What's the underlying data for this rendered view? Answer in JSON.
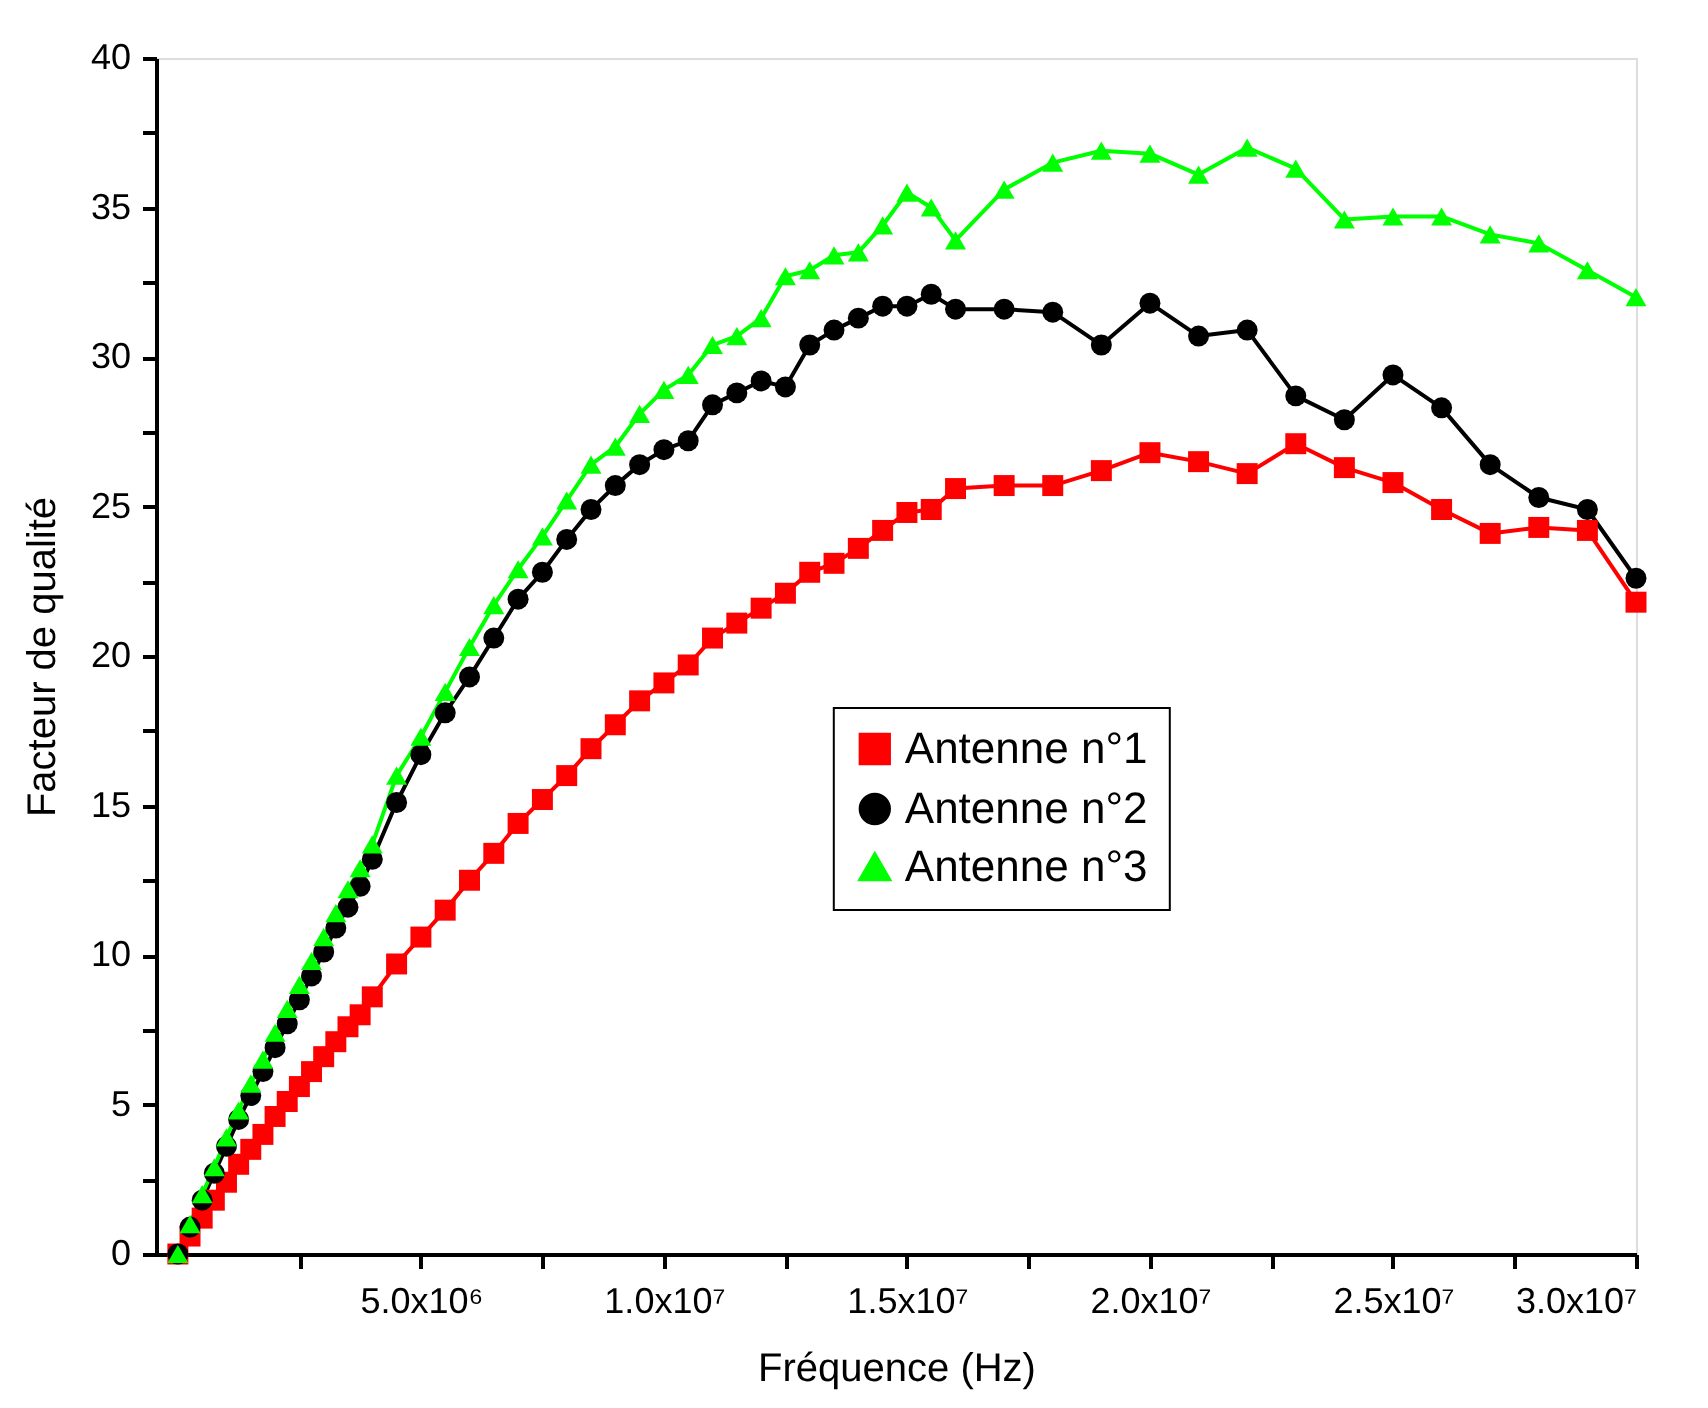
{
  "chart_data": {
    "type": "line",
    "xlabel": "Fréquence (Hz)",
    "ylabel": "Facteur de qualité",
    "xlim": [
      -450000,
      30000000
    ],
    "ylim": [
      0,
      40
    ],
    "xticks": [
      {
        "value": 2500000,
        "label": null
      },
      {
        "value": 5000000,
        "label": "5.0x10⁶"
      },
      {
        "value": 7500000,
        "label": null
      },
      {
        "value": 10000000,
        "label": "1.0x10⁷"
      },
      {
        "value": 12500000,
        "label": null
      },
      {
        "value": 15000000,
        "label": "1.5x10⁷"
      },
      {
        "value": 17500000,
        "label": null
      },
      {
        "value": 20000000,
        "label": "2.0x10⁷"
      },
      {
        "value": 22500000,
        "label": null
      },
      {
        "value": 25000000,
        "label": "2.5x10⁷"
      },
      {
        "value": 27500000,
        "label": null
      },
      {
        "value": 30000000,
        "label": "3.0x10⁷"
      }
    ],
    "yticks": [
      0,
      {
        "value": 2.5,
        "label": null
      },
      5,
      {
        "value": 7.5,
        "label": null
      },
      10,
      {
        "value": 12.5,
        "label": null
      },
      15,
      {
        "value": 17.5,
        "label": null
      },
      20,
      {
        "value": 22.5,
        "label": null
      },
      25,
      {
        "value": 27.5,
        "label": null
      },
      30,
      {
        "value": 32.5,
        "label": null
      },
      35,
      {
        "value": 37.5,
        "label": null
      },
      40
    ],
    "grid": false,
    "legend": "center",
    "line_style": "solid",
    "x": [
      0,
      250000,
      500000,
      750000,
      1000000,
      1250000,
      1500000,
      1750000,
      2000000,
      2250000,
      2500000,
      2750000,
      3000000,
      3250000,
      3500000,
      3750000,
      4000000,
      4500000,
      5000000,
      5500000,
      6000000,
      6500000,
      7000000,
      7500000,
      8000000,
      8500000,
      9000000,
      9500000,
      10000000,
      10500000,
      11000000,
      11500000,
      12000000,
      12500000,
      13000000,
      13500000,
      14000000,
      14500000,
      15000000,
      15500000,
      16000000,
      17000000,
      18000000,
      19000000,
      20000000,
      21000000,
      22000000,
      23000000,
      24000000,
      25000000,
      26000000,
      27000000,
      28000000,
      29000000,
      30000000
    ],
    "series": [
      {
        "name": "Antenne n°1",
        "color": "#ff0000",
        "marker": "square",
        "values": [
          0,
          0.6,
          1.2,
          1.8,
          2.4,
          3.0,
          3.5,
          4.0,
          4.6,
          5.1,
          5.6,
          6.1,
          6.6,
          7.1,
          7.6,
          8.0,
          8.6,
          9.7,
          10.6,
          11.5,
          12.5,
          13.4,
          14.4,
          15.2,
          16.0,
          16.9,
          17.7,
          18.5,
          19.1,
          19.7,
          20.6,
          21.1,
          21.6,
          22.1,
          22.8,
          23.1,
          23.6,
          24.2,
          24.8,
          24.9,
          25.6,
          25.7,
          25.7,
          26.2,
          26.8,
          26.5,
          26.1,
          27.1,
          26.3,
          25.8,
          24.9,
          24.1,
          24.3,
          24.2,
          21.8
        ]
      },
      {
        "name": "Antenne n°2",
        "color": "#000000",
        "marker": "circle",
        "values": [
          0,
          0.9,
          1.8,
          2.7,
          3.6,
          4.5,
          5.3,
          6.1,
          6.9,
          7.7,
          8.5,
          9.3,
          10.1,
          10.9,
          11.6,
          12.3,
          13.2,
          15.1,
          16.7,
          18.1,
          19.3,
          20.6,
          21.9,
          22.8,
          23.9,
          24.9,
          25.7,
          26.4,
          26.9,
          27.2,
          28.4,
          28.8,
          29.2,
          29.0,
          30.4,
          30.9,
          31.3,
          31.7,
          31.7,
          32.1,
          31.6,
          31.6,
          31.5,
          30.4,
          31.8,
          30.7,
          30.9,
          28.7,
          27.9,
          29.4,
          28.3,
          26.4,
          25.3,
          24.9,
          22.6
        ]
      },
      {
        "name": "Antenne n°3",
        "color": "#00ff00",
        "marker": "triangle",
        "values": [
          0,
          1.0,
          2.0,
          2.9,
          3.9,
          4.8,
          5.7,
          6.5,
          7.4,
          8.2,
          9.0,
          9.8,
          10.6,
          11.4,
          12.2,
          12.9,
          13.7,
          16.0,
          17.3,
          18.8,
          20.3,
          21.7,
          22.9,
          24.0,
          25.2,
          26.4,
          27.0,
          28.1,
          28.9,
          29.4,
          30.4,
          30.7,
          31.3,
          32.7,
          32.9,
          33.4,
          33.5,
          34.4,
          35.5,
          35.0,
          33.9,
          35.6,
          36.5,
          36.9,
          36.8,
          36.1,
          37.0,
          36.3,
          34.6,
          34.7,
          34.7,
          34.1,
          33.8,
          32.9,
          32.0
        ]
      }
    ]
  }
}
